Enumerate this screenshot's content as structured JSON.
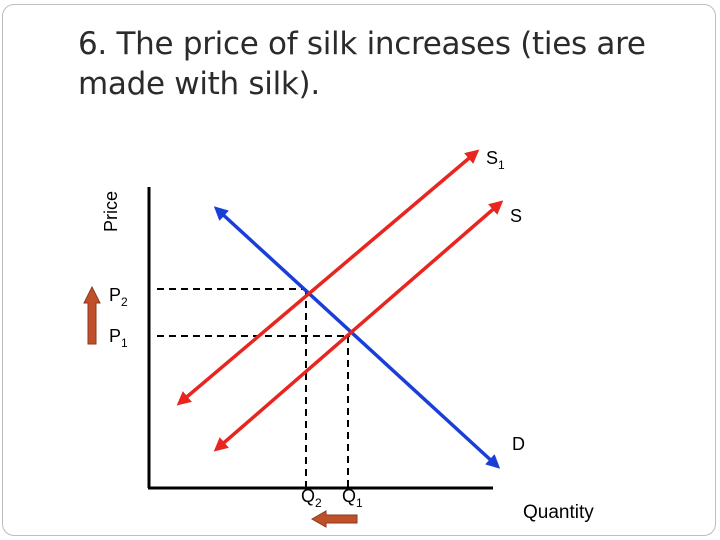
{
  "title": {
    "line1": "6. The price of silk increases (ties are",
    "line2": "made with silk)."
  },
  "axes": {
    "y_label": "Price",
    "x_label": "Quantity"
  },
  "curves": {
    "supply_new": {
      "base": "S",
      "sub": "1",
      "color": "#e8251f"
    },
    "supply": {
      "base": "S",
      "color": "#e8251f"
    },
    "demand": {
      "base": "D",
      "color": "#1a3fd8"
    }
  },
  "price_labels": {
    "p2": {
      "base": "P",
      "sub": "2"
    },
    "p1": {
      "base": "P",
      "sub": "1"
    }
  },
  "quantity_labels": {
    "q2": {
      "base": "Q",
      "sub": "2"
    },
    "q1": {
      "base": "Q",
      "sub": "1"
    }
  },
  "arrows": {
    "price_change": "up",
    "quantity_change": "left",
    "color": "#c0502a"
  }
}
